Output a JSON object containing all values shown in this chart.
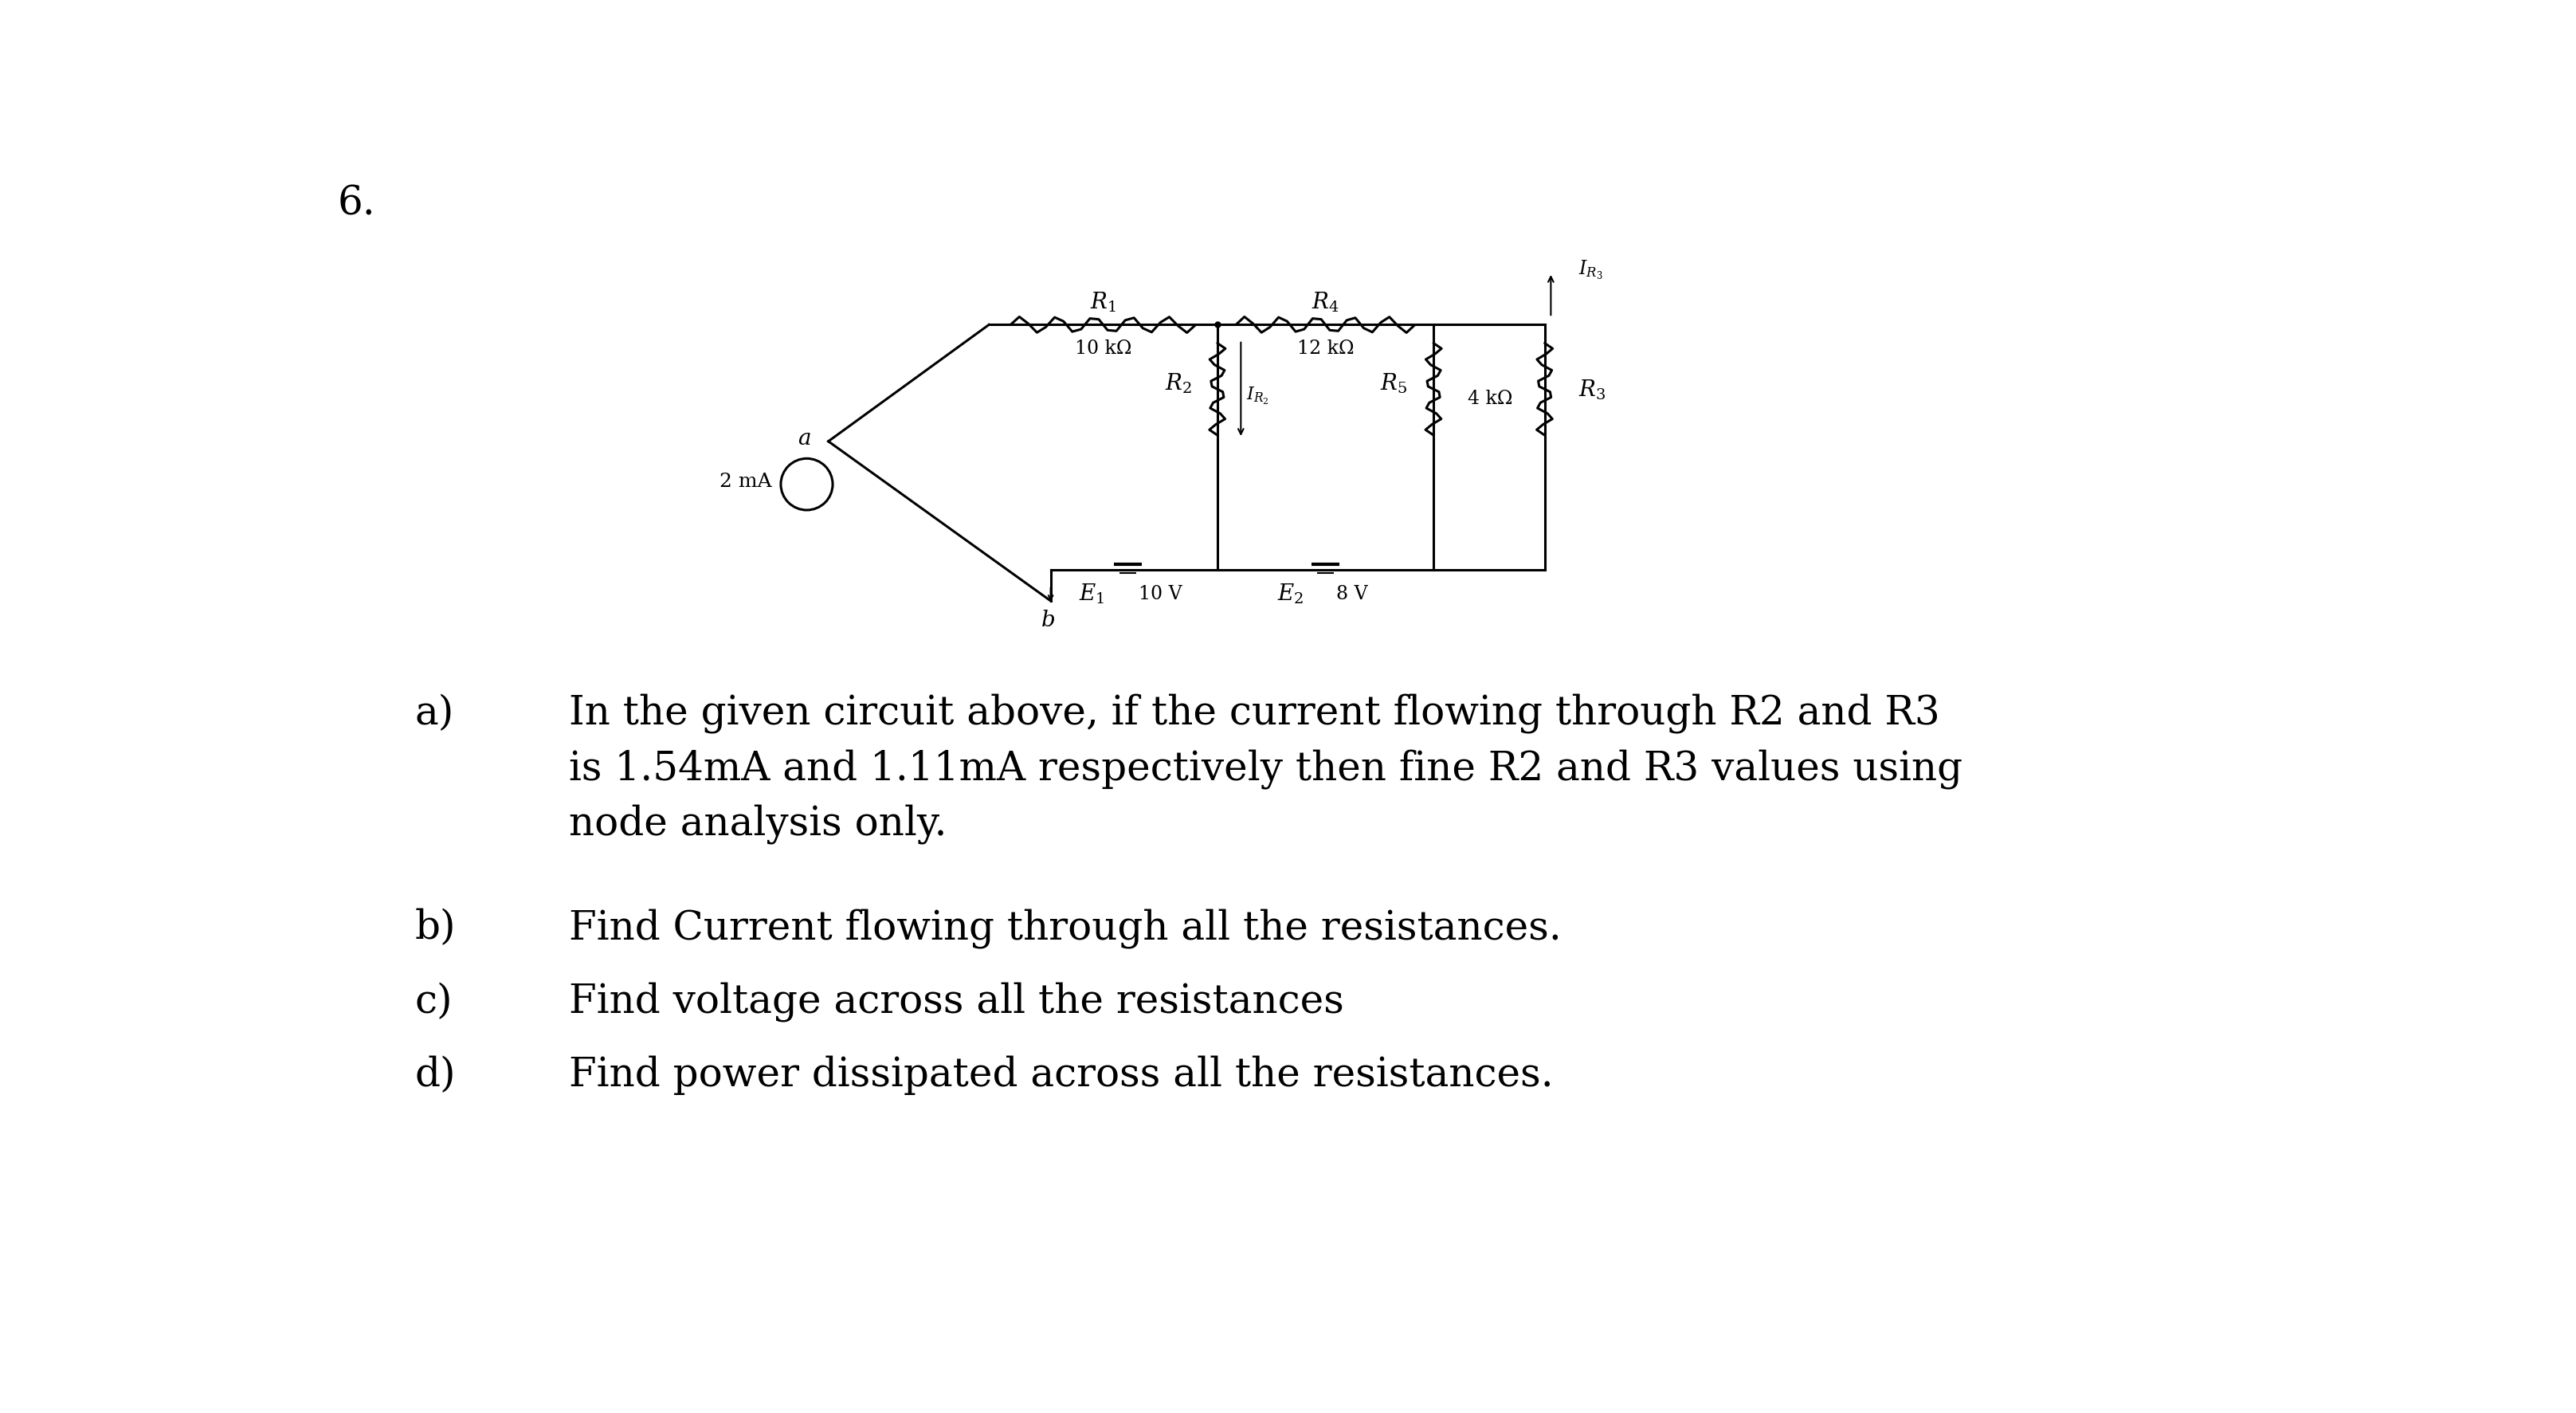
{
  "background_color": "#ffffff",
  "figure_number": "6.",
  "part_a_line1": "In the given circuit above, if the current flowing through R2 and R3",
  "part_a_line2": "is 1.54mA and 1.11mA respectively then fine R2 and R3 values using",
  "part_a_line3": "node analysis only.",
  "part_b": "Find Current flowing through all the resistances.",
  "part_c": "Find voltage across all the resistances",
  "part_d": "Find power dissipated across all the resistances.",
  "text_color": "#000000",
  "font_size_question": 36,
  "font_size_circuit": 22,
  "circuit_scale": 1.0
}
